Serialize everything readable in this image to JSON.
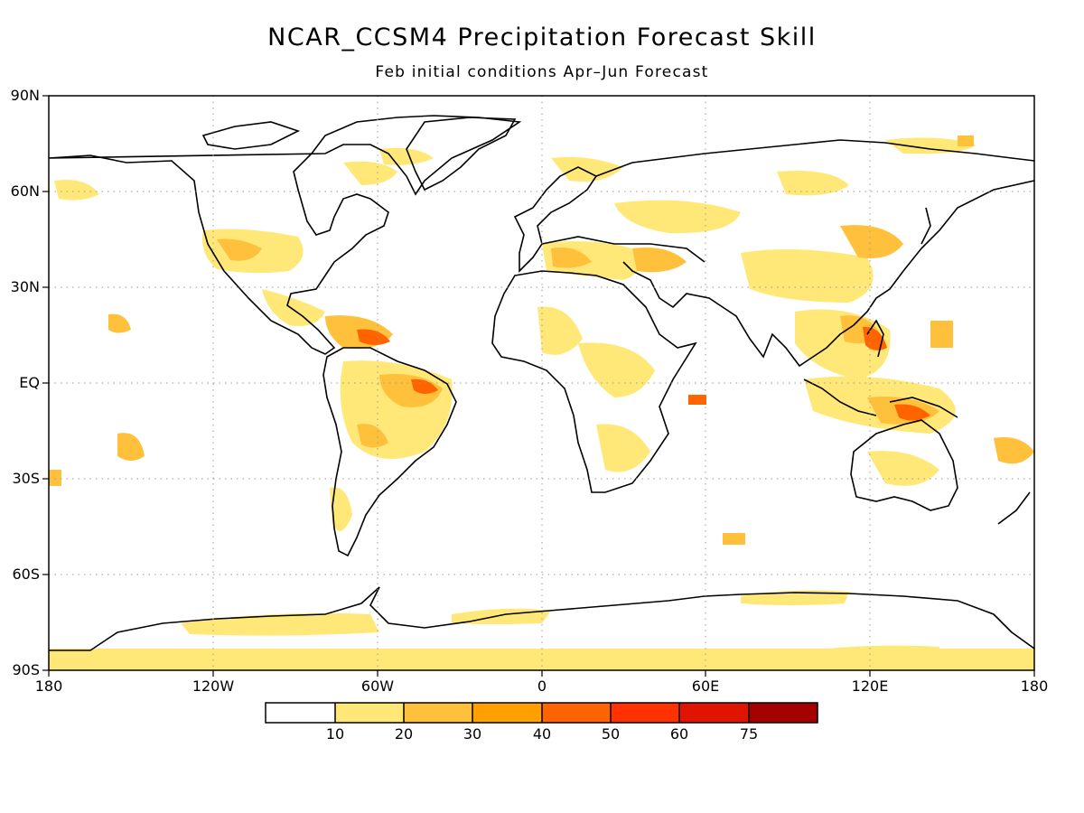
{
  "map": {
    "title": "NCAR_CCSM4 Precipitation Forecast Skill",
    "subtitle": "Feb initial conditions  Apr–Jun Forecast",
    "projection": "cylindrical equidistant",
    "grid": "dotted",
    "lat_labels": [
      "90N",
      "60N",
      "30N",
      "EQ",
      "30S",
      "60S",
      "90S"
    ],
    "lon_labels": [
      "180",
      "120W",
      "60W",
      "0",
      "60E",
      "120E",
      "180"
    ],
    "colorbar": {
      "labels": [
        "10",
        "20",
        "30",
        "40",
        "50",
        "60",
        "75"
      ],
      "colors": [
        "#ffffff",
        "#ffe878",
        "#ffc03c",
        "#ffa000",
        "#ff6400",
        "#ff3200",
        "#e11400",
        "#a50000"
      ]
    }
  }
}
